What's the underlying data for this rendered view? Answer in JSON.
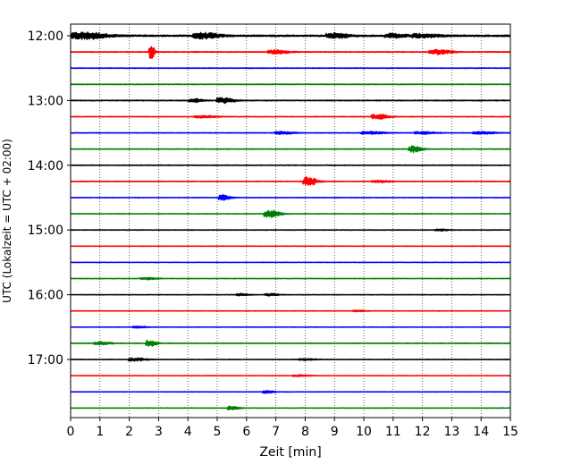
{
  "chart_data": {
    "type": "line",
    "title": "",
    "xlabel": "Zeit  [min]",
    "ylabel": "UTC (Lokalzeit = UTC + 02:00)",
    "xlim": [
      0,
      15
    ],
    "x_ticks": [
      0,
      1,
      2,
      3,
      4,
      5,
      6,
      7,
      8,
      9,
      10,
      11,
      12,
      13,
      14,
      15
    ],
    "x_tick_labels": [
      "0",
      "1",
      "2",
      "3",
      "4",
      "5",
      "6",
      "7",
      "8",
      "9",
      "10",
      "11",
      "12",
      "13",
      "14",
      "15"
    ],
    "y_ticks": [
      "12:00",
      "13:00",
      "14:00",
      "15:00",
      "16:00",
      "17:00"
    ],
    "grid": "vertical dotted lines at each minute",
    "trace_interval_min": 15,
    "color_cycle": [
      "#000000",
      "#ff0000",
      "#0000ff",
      "#008000"
    ],
    "traces": [
      {
        "start": "12:00",
        "color": "#000000",
        "noise": 0.9,
        "events": [
          [
            0.5,
            3.5,
            0.8
          ],
          [
            4.5,
            3.0,
            0.6
          ],
          [
            9.0,
            2.5,
            0.5
          ],
          [
            11.0,
            2.0,
            0.5
          ],
          [
            12.0,
            1.8,
            0.6
          ]
        ]
      },
      {
        "start": "12:15",
        "color": "#ff0000",
        "noise": 0.5,
        "events": [
          [
            2.75,
            9.0,
            0.12
          ],
          [
            7.0,
            2.0,
            0.5
          ],
          [
            12.5,
            2.5,
            0.5
          ]
        ]
      },
      {
        "start": "12:30",
        "color": "#0000ff",
        "noise": 0.4,
        "events": []
      },
      {
        "start": "12:45",
        "color": "#008000",
        "noise": 0.4,
        "events": []
      },
      {
        "start": "13:00",
        "color": "#000000",
        "noise": 0.5,
        "events": [
          [
            4.2,
            2.0,
            0.3
          ],
          [
            5.2,
            3.0,
            0.4
          ]
        ]
      },
      {
        "start": "13:15",
        "color": "#ff0000",
        "noise": 0.4,
        "events": [
          [
            4.5,
            1.2,
            0.5
          ],
          [
            10.5,
            2.5,
            0.4
          ]
        ]
      },
      {
        "start": "13:30",
        "color": "#0000ff",
        "noise": 0.4,
        "events": [
          [
            7.2,
            1.5,
            0.4
          ],
          [
            10.2,
            1.5,
            0.5
          ],
          [
            12.0,
            1.2,
            0.5
          ],
          [
            14.0,
            1.2,
            0.5
          ]
        ]
      },
      {
        "start": "13:45",
        "color": "#008000",
        "noise": 0.4,
        "events": [
          [
            11.7,
            3.5,
            0.3
          ]
        ]
      },
      {
        "start": "14:00",
        "color": "#000000",
        "noise": 0.4,
        "events": []
      },
      {
        "start": "14:15",
        "color": "#ff0000",
        "noise": 0.4,
        "events": [
          [
            8.1,
            5.0,
            0.3
          ],
          [
            10.5,
            1.2,
            0.4
          ]
        ]
      },
      {
        "start": "14:30",
        "color": "#0000ff",
        "noise": 0.35,
        "events": [
          [
            5.2,
            3.0,
            0.25
          ]
        ]
      },
      {
        "start": "14:45",
        "color": "#008000",
        "noise": 0.35,
        "events": [
          [
            6.8,
            4.0,
            0.35
          ]
        ]
      },
      {
        "start": "15:00",
        "color": "#000000",
        "noise": 0.35,
        "events": [
          [
            12.6,
            1.0,
            0.3
          ]
        ]
      },
      {
        "start": "15:15",
        "color": "#ff0000",
        "noise": 0.3,
        "events": []
      },
      {
        "start": "15:30",
        "color": "#0000ff",
        "noise": 0.3,
        "events": []
      },
      {
        "start": "15:45",
        "color": "#008000",
        "noise": 0.3,
        "events": [
          [
            2.6,
            1.2,
            0.4
          ]
        ]
      },
      {
        "start": "16:00",
        "color": "#000000",
        "noise": 0.3,
        "events": [
          [
            5.8,
            1.2,
            0.3
          ],
          [
            6.8,
            1.3,
            0.3
          ]
        ]
      },
      {
        "start": "16:15",
        "color": "#ff0000",
        "noise": 0.3,
        "events": [
          [
            9.8,
            0.8,
            0.3
          ]
        ]
      },
      {
        "start": "16:30",
        "color": "#0000ff",
        "noise": 0.3,
        "events": [
          [
            2.3,
            1.0,
            0.3
          ]
        ]
      },
      {
        "start": "16:45",
        "color": "#008000",
        "noise": 0.4,
        "events": [
          [
            1.0,
            1.5,
            0.4
          ],
          [
            2.7,
            3.5,
            0.25
          ]
        ]
      },
      {
        "start": "17:00",
        "color": "#000000",
        "noise": 0.35,
        "events": [
          [
            2.2,
            1.8,
            0.4
          ],
          [
            8.0,
            0.8,
            0.4
          ]
        ]
      },
      {
        "start": "17:15",
        "color": "#ff0000",
        "noise": 0.3,
        "events": [
          [
            7.8,
            0.8,
            0.4
          ]
        ]
      },
      {
        "start": "17:30",
        "color": "#0000ff",
        "noise": 0.3,
        "events": [
          [
            6.7,
            1.6,
            0.25
          ]
        ]
      },
      {
        "start": "17:45",
        "color": "#008000",
        "noise": 0.3,
        "events": [
          [
            5.5,
            2.2,
            0.25
          ]
        ]
      }
    ]
  }
}
